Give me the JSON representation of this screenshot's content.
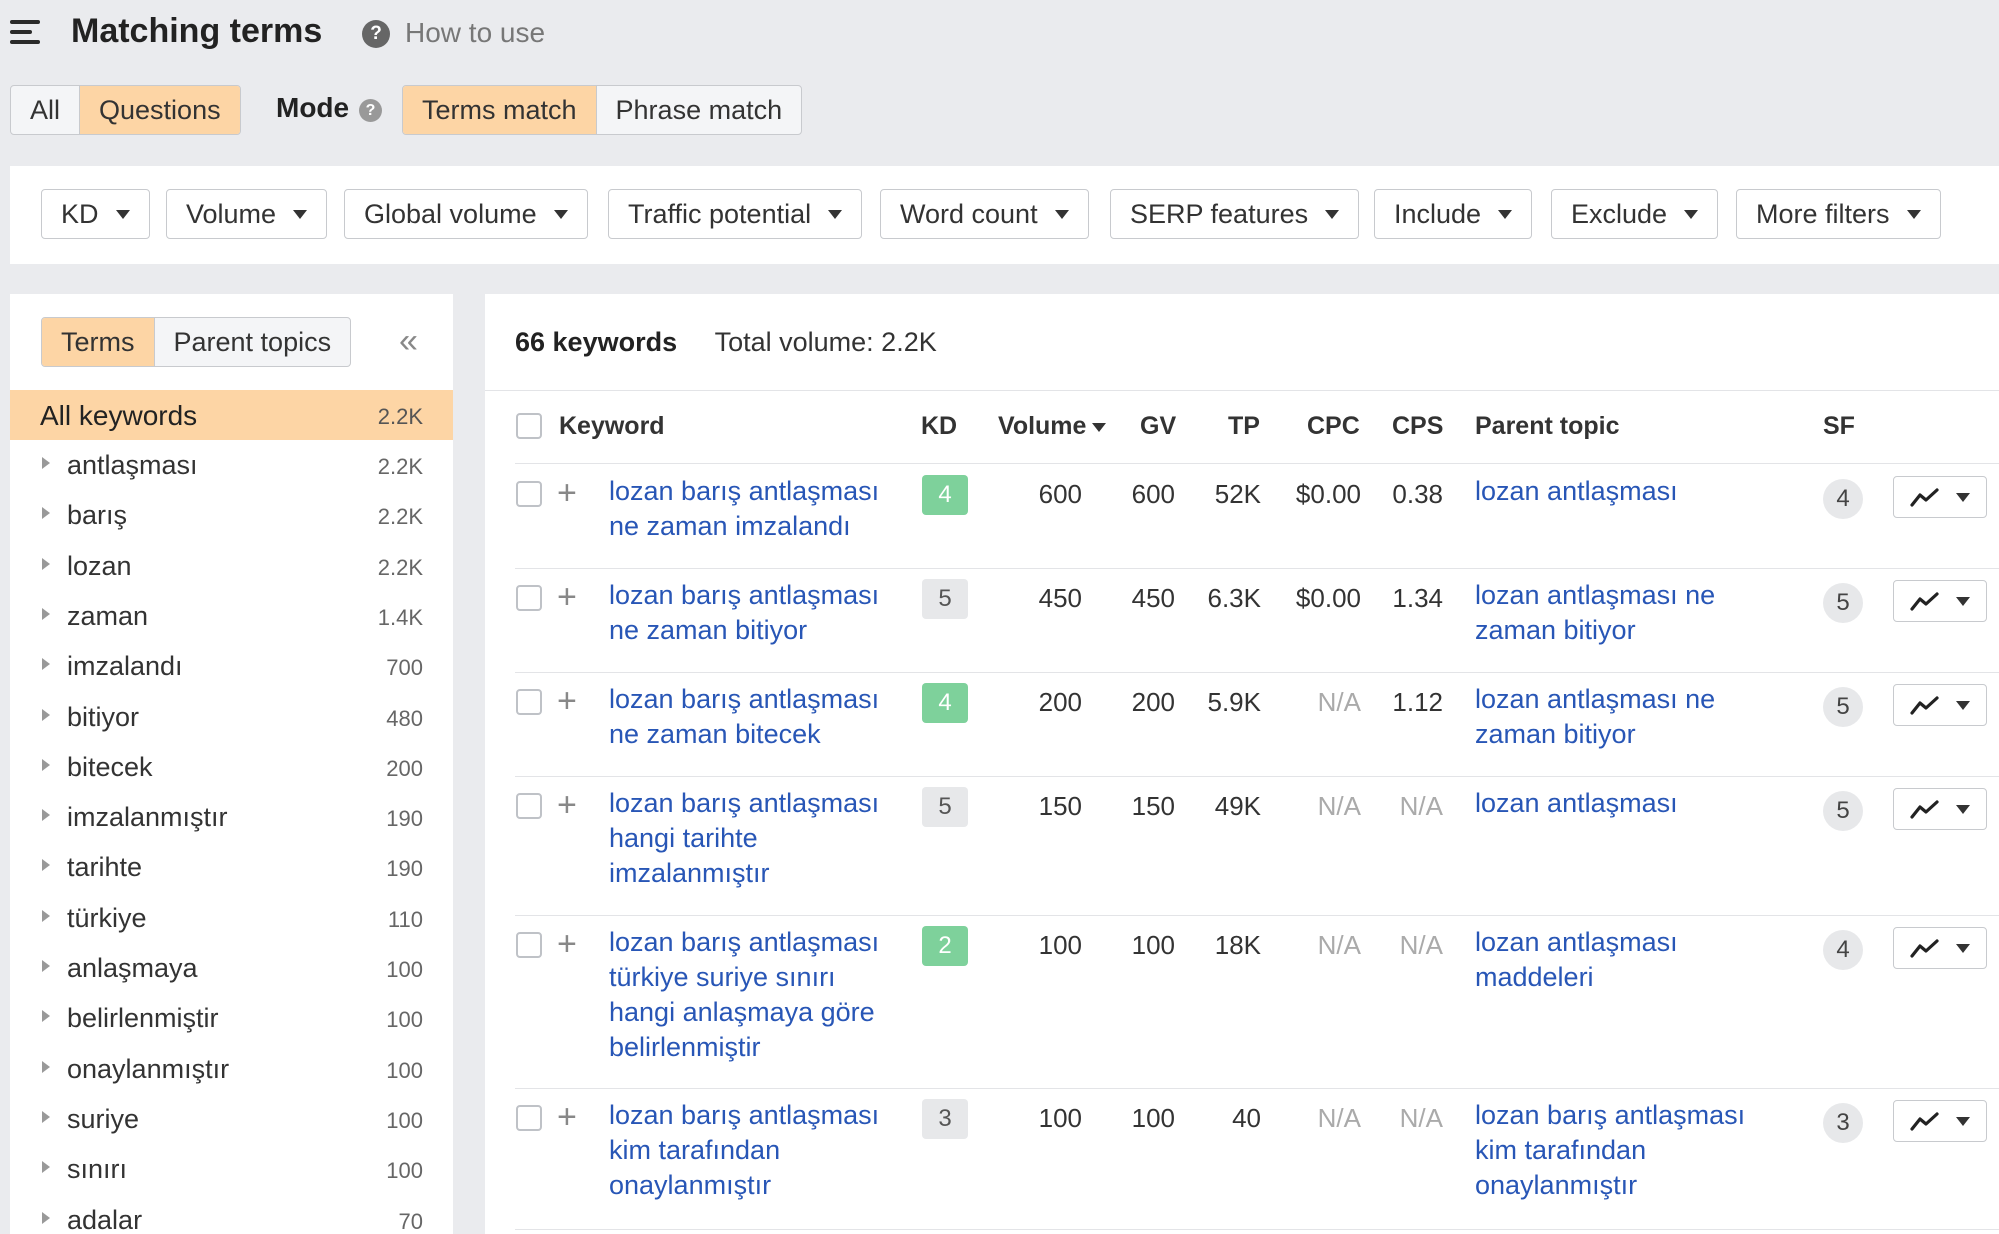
{
  "header": {
    "title": "Matching terms",
    "how_to_use": "How to use"
  },
  "toggles": {
    "scope": [
      {
        "label": "All",
        "active": false
      },
      {
        "label": "Questions",
        "active": true
      }
    ],
    "mode_label": "Mode",
    "mode": [
      {
        "label": "Terms match",
        "active": true
      },
      {
        "label": "Phrase match",
        "active": false
      }
    ]
  },
  "filters": [
    "KD",
    "Volume",
    "Global volume",
    "Traffic potential",
    "Word count",
    "SERP features",
    "Include",
    "Exclude",
    "More filters"
  ],
  "left_panel": {
    "tabs": [
      {
        "label": "Terms",
        "active": true
      },
      {
        "label": "Parent topics",
        "active": false
      }
    ],
    "all_keywords": {
      "label": "All keywords",
      "count": "2.2K"
    },
    "terms": [
      {
        "label": "antlaşması",
        "count": "2.2K"
      },
      {
        "label": "barış",
        "count": "2.2K"
      },
      {
        "label": "lozan",
        "count": "2.2K"
      },
      {
        "label": "zaman",
        "count": "1.4K"
      },
      {
        "label": "imzalandı",
        "count": "700"
      },
      {
        "label": "bitiyor",
        "count": "480"
      },
      {
        "label": "bitecek",
        "count": "200"
      },
      {
        "label": "imzalanmıştır",
        "count": "190"
      },
      {
        "label": "tarihte",
        "count": "190"
      },
      {
        "label": "türkiye",
        "count": "110"
      },
      {
        "label": "anlaşmaya",
        "count": "100"
      },
      {
        "label": "belirlenmiştir",
        "count": "100"
      },
      {
        "label": "onaylanmıştır",
        "count": "100"
      },
      {
        "label": "suriye",
        "count": "100"
      },
      {
        "label": "sınırı",
        "count": "100"
      },
      {
        "label": "adalar",
        "count": "70"
      }
    ]
  },
  "summary": {
    "keywords": "66 keywords",
    "total_volume": "Total volume: 2.2K"
  },
  "table": {
    "columns": {
      "keyword": "Keyword",
      "kd": "KD",
      "volume": "Volume",
      "gv": "GV",
      "tp": "TP",
      "cpc": "CPC",
      "cps": "CPS",
      "parent_topic": "Parent topic",
      "sf": "SF"
    },
    "rows": [
      {
        "keyword": "lozan barış antlaşması ne zaman imzalandı",
        "kd": "4",
        "kd_color": "#7ed19b",
        "volume": "600",
        "gv": "600",
        "tp": "52K",
        "cpc": "$0.00",
        "cps": "0.38",
        "parent_topic": "lozan antlaşması",
        "sf": "4"
      },
      {
        "keyword": "lozan barış antlaşması ne zaman bitiyor",
        "kd": "5",
        "kd_color": "#e7e8ea",
        "volume": "450",
        "gv": "450",
        "tp": "6.3K",
        "cpc": "$0.00",
        "cps": "1.34",
        "parent_topic": "lozan antlaşması ne zaman bitiyor",
        "sf": "5"
      },
      {
        "keyword": "lozan barış antlaşması ne zaman bitecek",
        "kd": "4",
        "kd_color": "#7ed19b",
        "volume": "200",
        "gv": "200",
        "tp": "5.9K",
        "cpc": "N/A",
        "cps": "1.12",
        "parent_topic": "lozan antlaşması ne zaman bitiyor",
        "sf": "5"
      },
      {
        "keyword": "lozan barış antlaşması hangi tarihte imzalanmıştır",
        "kd": "5",
        "kd_color": "#e7e8ea",
        "volume": "150",
        "gv": "150",
        "tp": "49K",
        "cpc": "N/A",
        "cps": "N/A",
        "parent_topic": "lozan antlaşması",
        "sf": "5"
      },
      {
        "keyword": "lozan barış antlaşması türkiye suriye sınırı hangi anlaşmaya göre belirlenmiştir",
        "kd": "2",
        "kd_color": "#7ed19b",
        "volume": "100",
        "gv": "100",
        "tp": "18K",
        "cpc": "N/A",
        "cps": "N/A",
        "parent_topic": "lozan antlaşması maddeleri",
        "sf": "4"
      },
      {
        "keyword": "lozan barış antlaşması kim tarafından onaylanmıştır",
        "kd": "3",
        "kd_color": "#e7e8ea",
        "volume": "100",
        "gv": "100",
        "tp": "40",
        "cpc": "N/A",
        "cps": "N/A",
        "parent_topic": "lozan barış antlaşması kim tarafından onaylanmıştır",
        "sf": "3"
      }
    ]
  },
  "icons": {
    "menu": "hamburger-icon",
    "help": "question-circle-icon",
    "collapse": "double-chevron-left-icon",
    "trend": "trend-line-icon"
  }
}
